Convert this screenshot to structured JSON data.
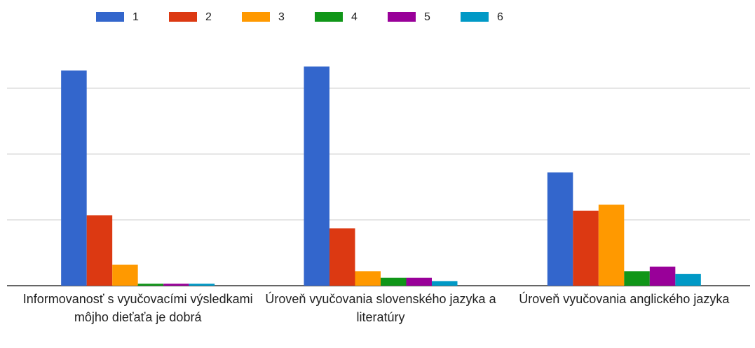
{
  "chart_data": {
    "type": "bar",
    "categories": [
      "Informovanosť s vyučovacími výsledkami môjho dieťaťa je dobrá",
      "Úroveň vyučovania slovenského jazyka a literatúry",
      "Úroveň vyučovania anglického jazyka"
    ],
    "series": [
      {
        "name": "1",
        "color": "#3366cc",
        "values": [
          3.27,
          3.33,
          1.72
        ]
      },
      {
        "name": "2",
        "color": "#dc3912",
        "values": [
          1.07,
          0.87,
          1.14
        ]
      },
      {
        "name": "3",
        "color": "#ff9900",
        "values": [
          0.32,
          0.22,
          1.23
        ]
      },
      {
        "name": "4",
        "color": "#109618",
        "values": [
          0.03,
          0.12,
          0.22
        ]
      },
      {
        "name": "5",
        "color": "#990099",
        "values": [
          0.03,
          0.12,
          0.29
        ]
      },
      {
        "name": "6",
        "color": "#0099c6",
        "values": [
          0.03,
          0.07,
          0.18
        ]
      }
    ],
    "ylim": [
      0,
      3.5
    ],
    "yticks": [
      0,
      1,
      2,
      3
    ],
    "grid": true,
    "legend": "top"
  }
}
